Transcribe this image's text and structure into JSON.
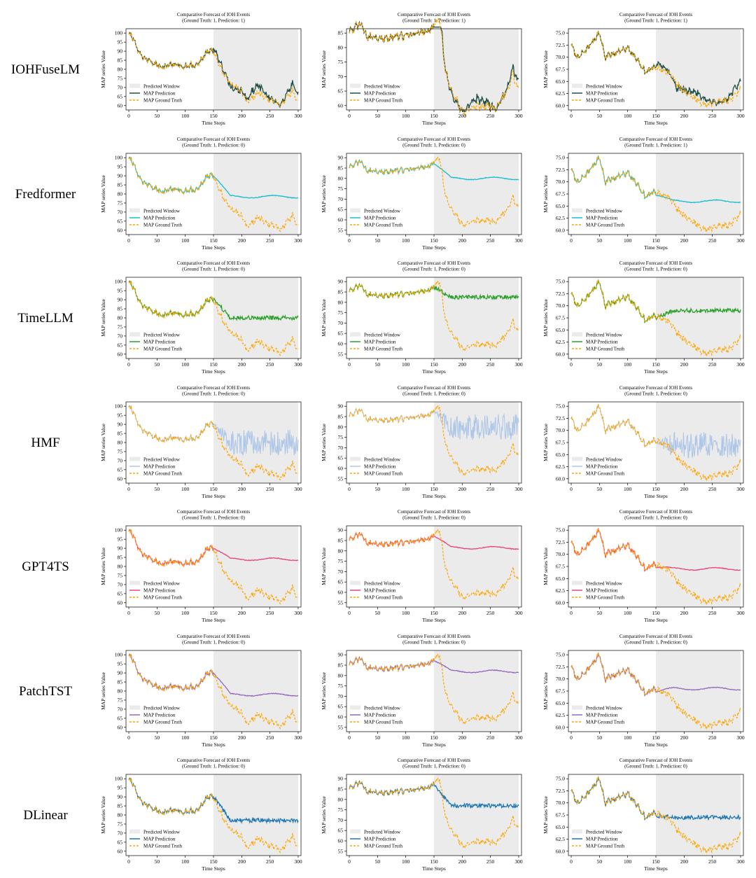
{
  "figure": {
    "panel_title": "Comparative Forecast of IOH Events",
    "xlabel": "Time Steps",
    "ylabel": "MAP series Value",
    "legend": {
      "window": "Predicted Window",
      "prediction": "MAP Prediction",
      "truth": "MAP Ground Truth"
    },
    "colors": {
      "ground_truth": "#ffa500",
      "window": "#ebebeb"
    }
  },
  "rows": [
    {
      "model": "IOHFuseLM",
      "color": "#1f4e45",
      "style": "close",
      "panels": [
        {
          "subtitle": "(Ground Truth: 1, Prediction: 1)"
        },
        {
          "subtitle": "(Ground Truth: 1, Prediction: 1)"
        },
        {
          "subtitle": "(Ground Truth: 1, Prediction: 1)"
        }
      ]
    },
    {
      "model": "Fredformer",
      "color": "#17becf",
      "style": "smooth",
      "panels": [
        {
          "subtitle": "(Ground Truth: 1, Prediction: 0)"
        },
        {
          "subtitle": "(Ground Truth: 1, Prediction: 0)"
        },
        {
          "subtitle": "(Ground Truth: 1, Prediction: 1)"
        }
      ]
    },
    {
      "model": "TimeLLM",
      "color": "#2ca02c",
      "style": "noisy",
      "panels": [
        {
          "subtitle": "(Ground Truth: 1, Prediction: 0)"
        },
        {
          "subtitle": "(Ground Truth: 1, Prediction: 0)"
        },
        {
          "subtitle": "(Ground Truth: 1, Prediction: 0)"
        }
      ]
    },
    {
      "model": "HMF",
      "color": "#aec7e8",
      "style": "spiky",
      "panels": [
        {
          "subtitle": "(Ground Truth: 1, Prediction: 0)"
        },
        {
          "subtitle": "(Ground Truth: 1, Prediction: 0)"
        },
        {
          "subtitle": "(Ground Truth: 1, Prediction: 0)"
        }
      ]
    },
    {
      "model": "GPT4TS",
      "color": "#e7457a",
      "style": "smooth",
      "panels": [
        {
          "subtitle": "(Ground Truth: 1, Prediction: 0)"
        },
        {
          "subtitle": "(Ground Truth: 1, Prediction: 0)"
        },
        {
          "subtitle": "(Ground Truth: 1, Prediction: 0)"
        }
      ]
    },
    {
      "model": "PatchTST",
      "color": "#9467bd",
      "style": "smooth",
      "panels": [
        {
          "subtitle": "(Ground Truth: 1, Prediction: 0)"
        },
        {
          "subtitle": "(Ground Truth: 1, Prediction: 0)"
        },
        {
          "subtitle": "(Ground Truth: 1, Prediction: 0)"
        }
      ]
    },
    {
      "model": "DLinear",
      "color": "#1f77b4",
      "style": "noisy",
      "panels": [
        {
          "subtitle": "(Ground Truth: 1, Prediction: 0)"
        },
        {
          "subtitle": "(Ground Truth: 1, Prediction: 0)"
        },
        {
          "subtitle": "(Ground Truth: 1, Prediction: 0)"
        }
      ]
    }
  ],
  "chart_data": [
    {
      "type": "line",
      "column": 1,
      "x_domain": [
        -5,
        305
      ],
      "xticks": [
        0,
        50,
        100,
        150,
        200,
        250,
        300
      ],
      "predicted_window": [
        150,
        300
      ],
      "ground_truth_keypoints": {
        "x": [
          0,
          5,
          20,
          40,
          60,
          80,
          100,
          120,
          140,
          150,
          170,
          180,
          200,
          210,
          230,
          250,
          270,
          290,
          300
        ],
        "y": [
          99,
          99,
          88,
          84,
          81,
          83,
          82,
          82,
          90,
          90,
          76,
          72,
          68,
          62,
          67,
          63,
          61,
          68,
          62
        ]
      },
      "prediction_level_after_150": {
        "IOHFuseLM": "tracks ground truth (ends ~69)",
        "Fredformer": 78.5,
        "TimeLLM": 80,
        "HMF": 80,
        "GPT4TS": 84,
        "PatchTST": 78,
        "DLinear": 77
      },
      "yticks": {
        "IOHFuseLM": [
          60,
          65,
          70,
          75,
          80,
          85,
          90,
          95,
          100
        ],
        "Fredformer": [
          60,
          65,
          70,
          75,
          80,
          85,
          90,
          95,
          100
        ],
        "TimeLLM": [
          60,
          65,
          70,
          75,
          80,
          85,
          90,
          95,
          100
        ],
        "HMF": [
          60,
          65,
          70,
          75,
          80,
          85,
          90,
          95,
          100
        ],
        "GPT4TS": [
          60,
          65,
          70,
          75,
          80,
          85,
          90,
          95,
          100
        ],
        "PatchTST": [
          60,
          65,
          70,
          75,
          80,
          85,
          90,
          95,
          100
        ],
        "DLinear": [
          60,
          65,
          70,
          75,
          80,
          85,
          90,
          95,
          100
        ]
      }
    },
    {
      "type": "line",
      "column": 2,
      "x_domain": [
        -5,
        305
      ],
      "xticks": [
        0,
        50,
        100,
        150,
        200,
        250,
        300
      ],
      "predicted_window": [
        150,
        300
      ],
      "ground_truth_keypoints": {
        "x": [
          0,
          20,
          30,
          60,
          100,
          140,
          160,
          170,
          180,
          200,
          220,
          240,
          260,
          280,
          290,
          300
        ],
        "y": [
          86,
          88,
          84,
          83,
          84,
          86,
          90,
          72,
          66,
          58,
          59,
          60,
          59,
          65,
          71,
          65
        ]
      },
      "prediction_level_after_150": {
        "IOHFuseLM": "drops to ~64, ends ~69",
        "Fredformer": 80,
        "TimeLLM": 82.5,
        "HMF": 80,
        "GPT4TS": 81.5,
        "PatchTST": 82,
        "DLinear": 77
      },
      "yticks": {
        "IOHFuseLM": [
          60,
          65,
          70,
          75,
          80,
          85
        ],
        "Fredformer": [
          55,
          60,
          65,
          70,
          75,
          80,
          85,
          90
        ],
        "TimeLLM": [
          55,
          60,
          65,
          70,
          75,
          80,
          85,
          90
        ],
        "HMF": [
          55,
          60,
          65,
          70,
          75,
          80,
          85,
          90
        ],
        "GPT4TS": [
          55,
          60,
          65,
          70,
          75,
          80,
          85,
          90
        ],
        "PatchTST": [
          55,
          60,
          65,
          70,
          75,
          80,
          85,
          90
        ],
        "DLinear": [
          55,
          60,
          65,
          70,
          75,
          80,
          85,
          90
        ]
      }
    },
    {
      "type": "line",
      "column": 3,
      "x_domain": [
        -5,
        305
      ],
      "xticks": [
        0,
        50,
        100,
        150,
        200,
        250,
        300
      ],
      "predicted_window": [
        150,
        300
      ],
      "ground_truth_keypoints": {
        "x": [
          0,
          10,
          30,
          50,
          60,
          80,
          100,
          120,
          130,
          150,
          170,
          190,
          210,
          240,
          260,
          280,
          300
        ],
        "y": [
          72.5,
          70,
          72,
          75,
          70,
          71,
          72,
          69,
          67,
          68,
          67,
          64,
          62,
          60,
          61,
          61,
          63.5
        ]
      },
      "prediction_level_after_150": {
        "IOHFuseLM": "oscillates, ends ~62",
        "Fredformer": 66,
        "TimeLLM": 69,
        "HMF": 67,
        "GPT4TS": 67,
        "PatchTST": 68,
        "DLinear": 67
      },
      "yticks": {
        "IOHFuseLM": [
          60.0,
          62.5,
          65.0,
          67.5,
          70.0,
          72.5,
          75.0
        ],
        "Fredformer": [
          60.0,
          62.5,
          65.0,
          67.5,
          70.0,
          72.5,
          75.0
        ],
        "TimeLLM": [
          60.0,
          62.5,
          65.0,
          67.5,
          70.0,
          72.5,
          75.0
        ],
        "HMF": [
          60.0,
          62.5,
          65.0,
          67.5,
          70.0,
          72.5,
          75.0
        ],
        "GPT4TS": [
          60.0,
          62.5,
          65.0,
          67.5,
          70.0,
          72.5,
          75.0
        ],
        "PatchTST": [
          60.0,
          62.5,
          65.0,
          67.5,
          70.0,
          72.5,
          75.0
        ],
        "DLinear": [
          60.0,
          62.5,
          65.0,
          67.5,
          70.0,
          72.5,
          75.0
        ]
      }
    }
  ]
}
